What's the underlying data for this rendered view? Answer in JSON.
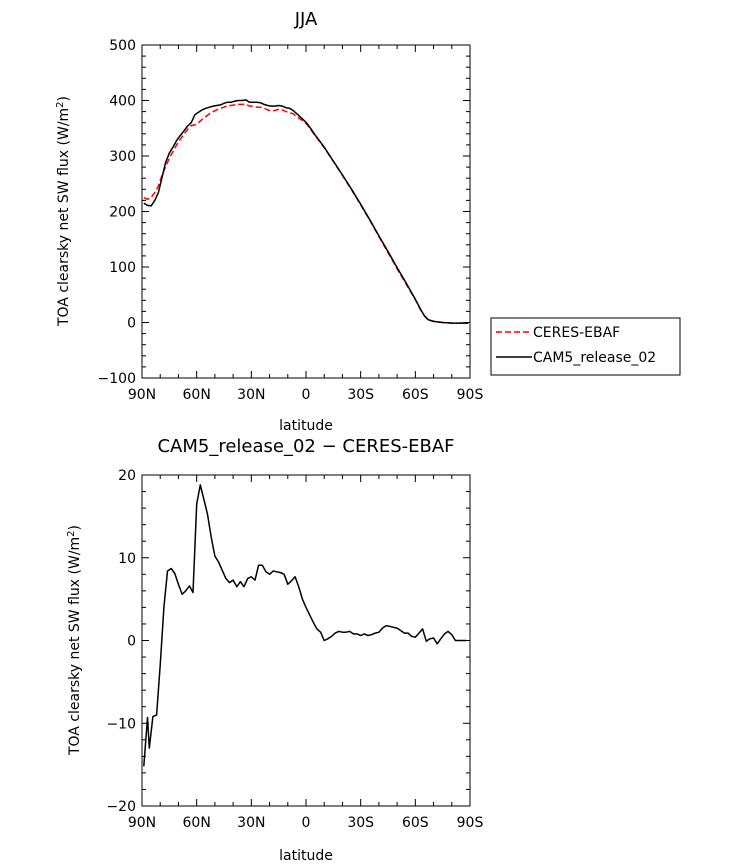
{
  "chart_data": [
    {
      "type": "line",
      "title": "JJA",
      "xlabel": "latitude",
      "ylabel_main": "TOA clearsky net SW flux (W/m",
      "ylabel_sup": "2",
      "ylabel_close": ")",
      "xlim": [
        90,
        -90
      ],
      "ylim": [
        -100,
        500
      ],
      "xticks": [
        90,
        60,
        30,
        0,
        -30,
        -60,
        -90
      ],
      "xtick_labels": [
        "90N",
        "60N",
        "30N",
        "0",
        "30S",
        "60S",
        "90S"
      ],
      "yticks": [
        -100,
        0,
        100,
        200,
        300,
        400,
        500
      ],
      "ytick_labels": [
        "−100",
        "0",
        "100",
        "200",
        "300",
        "400",
        "500"
      ],
      "legend_position": "right-outside",
      "series": [
        {
          "name": "CERES-EBAF",
          "color": "#ff0000",
          "dash": true,
          "x": [
            89,
            87,
            85,
            83,
            81,
            79,
            77,
            75,
            73,
            71,
            69,
            67,
            65,
            63,
            61,
            59,
            57,
            55,
            53,
            51,
            49,
            47,
            45,
            43,
            41,
            39,
            37,
            35,
            33,
            31,
            29,
            27,
            25,
            23,
            21,
            19,
            17,
            15,
            13,
            11,
            9,
            7,
            5,
            3,
            1,
            -1,
            -5,
            -10,
            -15,
            -20,
            -25,
            -30,
            -35,
            -40,
            -45,
            -50,
            -55,
            -60,
            -63,
            -65,
            -67,
            -70,
            -75,
            -80,
            -85,
            -89
          ],
          "y": [
            225,
            222,
            225,
            234,
            246,
            265,
            281,
            296,
            308,
            320,
            330,
            339,
            348,
            355,
            356,
            360,
            366,
            371,
            376,
            380,
            383,
            386,
            388,
            391,
            391,
            392,
            393,
            393,
            393,
            390,
            390,
            388,
            388,
            386,
            383,
            381,
            382,
            384,
            383,
            380,
            378,
            376,
            371,
            366,
            362,
            355,
            337,
            315,
            290,
            265,
            239,
            212,
            184,
            155,
            126,
            97,
            69,
            41,
            22,
            12,
            5,
            2,
            0,
            -1,
            -1,
            -1
          ]
        },
        {
          "name": "CAM5_release_02",
          "color": "#000000",
          "dash": false,
          "x": [
            89,
            87,
            85,
            83,
            81,
            79,
            77,
            75,
            73,
            71,
            69,
            67,
            65,
            63,
            61,
            59,
            57,
            55,
            53,
            51,
            49,
            47,
            45,
            43,
            41,
            39,
            37,
            35,
            33,
            31,
            29,
            27,
            25,
            23,
            21,
            19,
            17,
            15,
            13,
            11,
            9,
            7,
            5,
            3,
            1,
            -1,
            -5,
            -10,
            -15,
            -20,
            -25,
            -30,
            -35,
            -40,
            -45,
            -50,
            -55,
            -60,
            -63,
            -65,
            -67,
            -70,
            -75,
            -80,
            -85,
            -89
          ],
          "y": [
            215,
            211,
            210,
            220,
            234,
            261,
            289,
            305,
            316,
            328,
            337,
            345,
            354,
            360,
            374,
            379,
            383,
            386,
            388,
            390,
            391,
            392,
            395,
            397,
            397,
            399,
            400,
            400,
            401,
            397,
            397,
            397,
            396,
            393,
            391,
            390,
            390,
            391,
            390,
            387,
            386,
            382,
            376,
            370,
            364,
            357,
            338,
            316,
            291,
            266,
            240,
            213,
            185,
            156,
            128,
            99,
            71,
            42,
            23,
            12,
            5,
            2,
            0,
            -1,
            -1,
            -1
          ]
        }
      ]
    },
    {
      "type": "line",
      "title": "CAM5_release_02 − CERES-EBAF",
      "xlabel": "latitude",
      "ylabel_main": "TOA clearsky net SW flux (W/m",
      "ylabel_sup": "2",
      "ylabel_close": ")",
      "xlim": [
        90,
        -90
      ],
      "ylim": [
        -20,
        20
      ],
      "xticks": [
        90,
        60,
        30,
        0,
        -30,
        -60,
        -90
      ],
      "xtick_labels": [
        "90N",
        "60N",
        "30N",
        "0",
        "30S",
        "60S",
        "90S"
      ],
      "yticks": [
        -20,
        -10,
        0,
        10,
        20
      ],
      "ytick_labels": [
        "−20",
        "−10",
        "0",
        "10",
        "20"
      ],
      "series": [
        {
          "color": "#000000",
          "x": [
            89,
            87,
            86,
            84,
            82,
            80,
            78,
            76,
            74,
            72,
            70,
            68,
            66,
            64,
            62,
            60,
            58,
            56,
            54,
            52,
            50,
            48,
            46,
            44,
            42,
            40,
            38,
            36,
            34,
            32,
            30,
            28,
            26,
            24,
            22,
            20,
            18,
            16,
            14,
            12,
            10,
            8,
            6,
            4,
            2,
            0,
            -2,
            -4,
            -6,
            -8,
            -10,
            -12,
            -14,
            -16,
            -18,
            -20,
            -22,
            -24,
            -26,
            -28,
            -30,
            -32,
            -34,
            -36,
            -38,
            -40,
            -42,
            -44,
            -46,
            -48,
            -50,
            -52,
            -54,
            -56,
            -58,
            -60,
            -62,
            -64,
            -66,
            -68,
            -70,
            -72,
            -74,
            -76,
            -78,
            -80,
            -82,
            -84,
            -86,
            -88
          ],
          "y": [
            -15.2,
            -9.3,
            -13.0,
            -9.2,
            -9.0,
            -3.0,
            4.0,
            8.4,
            8.7,
            8.1,
            6.8,
            5.6,
            6.0,
            6.6,
            5.8,
            16.5,
            18.8,
            17.0,
            15.2,
            12.5,
            10.2,
            9.5,
            8.5,
            7.5,
            7.0,
            7.3,
            6.5,
            7.1,
            6.5,
            7.5,
            7.7,
            7.3,
            9.1,
            9.1,
            8.3,
            8.0,
            8.4,
            8.3,
            8.2,
            8.0,
            6.8,
            7.2,
            7.7,
            6.5,
            5.0,
            4.0,
            3.1,
            2.2,
            1.4,
            1.0,
            0.0,
            0.2,
            0.5,
            0.9,
            1.1,
            1.0,
            1.0,
            1.1,
            0.8,
            0.8,
            0.6,
            0.8,
            0.6,
            0.7,
            0.9,
            1.0,
            1.5,
            1.8,
            1.7,
            1.6,
            1.5,
            1.2,
            0.9,
            0.9,
            0.5,
            0.4,
            0.9,
            1.4,
            -0.1,
            0.2,
            0.3,
            -0.4,
            0.2,
            0.8,
            1.1,
            0.7,
            0.0,
            0.0,
            0.0,
            0.0
          ]
        }
      ]
    }
  ]
}
